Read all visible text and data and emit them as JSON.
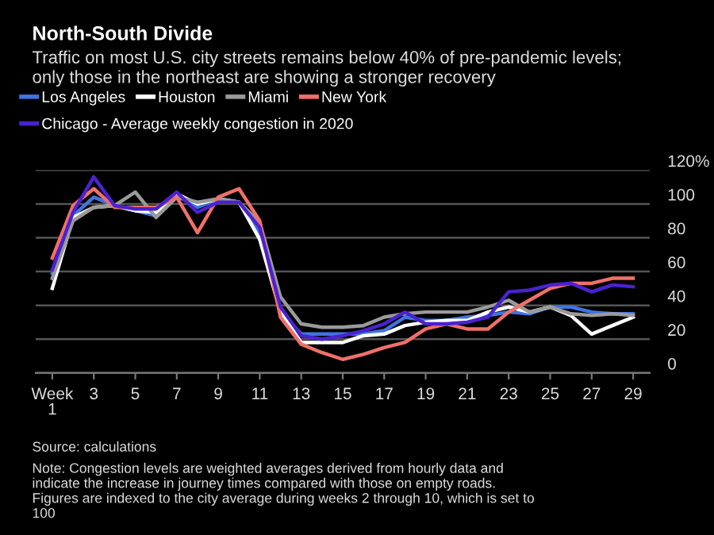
{
  "chart_data": {
    "type": "line",
    "title": "North-South Divide",
    "subtitle": "Traffic on most U.S. city streets remains below 40% of pre-pandemic levels;\nonly those in the northeast are showing a stronger recovery",
    "x": [
      1,
      2,
      3,
      4,
      5,
      6,
      7,
      8,
      9,
      10,
      11,
      12,
      13,
      14,
      15,
      16,
      17,
      18,
      19,
      20,
      21,
      22,
      23,
      24,
      25,
      26,
      27,
      28,
      29
    ],
    "series": [
      {
        "name": "Los Angeles",
        "color": "#3f74e0",
        "values": [
          59,
          93,
          104,
          99,
          96,
          93,
          105,
          98,
          103,
          101,
          83,
          36,
          23,
          23,
          23,
          23,
          25,
          33,
          31,
          31,
          33,
          34,
          36,
          35,
          39,
          39,
          36,
          35,
          35
        ]
      },
      {
        "name": "Houston",
        "color": "#ffffff",
        "values": [
          50,
          92,
          98,
          99,
          96,
          95,
          106,
          100,
          103,
          101,
          79,
          36,
          18,
          18,
          18,
          22,
          23,
          28,
          30,
          31,
          31,
          36,
          39,
          36,
          39,
          34,
          23,
          28,
          33
        ]
      },
      {
        "name": "Miami",
        "color": "#9a9a9a",
        "values": [
          56,
          90,
          98,
          99,
          107,
          92,
          104,
          101,
          103,
          101,
          89,
          45,
          29,
          27,
          27,
          28,
          33,
          35,
          36,
          36,
          36,
          39,
          43,
          36,
          39,
          35,
          34,
          35,
          34
        ]
      },
      {
        "name": "New York",
        "color": "#f0706a",
        "values": [
          68,
          99,
          109,
          98,
          98,
          98,
          104,
          83,
          104,
          109,
          90,
          33,
          17,
          12,
          8,
          11,
          15,
          18,
          26,
          29,
          26,
          26,
          36,
          43,
          50,
          53,
          53,
          56,
          56
        ]
      },
      {
        "name": "Chicago - Average weekly congestion in 2020",
        "color": "#4a22d0",
        "values": [
          61,
          95,
          116,
          99,
          97,
          97,
          107,
          95,
          101,
          101,
          86,
          39,
          22,
          20,
          22,
          25,
          29,
          36,
          29,
          29,
          30,
          33,
          48,
          49,
          52,
          53,
          48,
          52,
          51
        ]
      }
    ],
    "xlim": [
      0.2,
      29.8
    ],
    "xticks": [
      {
        "value": 1,
        "label": "Week\n1"
      },
      3,
      5,
      7,
      9,
      11,
      13,
      15,
      17,
      19,
      21,
      23,
      25,
      27,
      29
    ],
    "ylim": [
      0,
      120
    ],
    "yticks": [
      0,
      20,
      40,
      60,
      80,
      100,
      {
        "value": 120,
        "label": "120%"
      }
    ],
    "grid": "y",
    "legend": "top left",
    "annotations": [
      "Source: calculations",
      "Note: Congestion levels are weighted averages derived from hourly data and\nindicate the increase in journey times compared with those on empty roads.\nFigures are indexed to the city average during weeks 2 through 10, which is set to\n100"
    ]
  }
}
